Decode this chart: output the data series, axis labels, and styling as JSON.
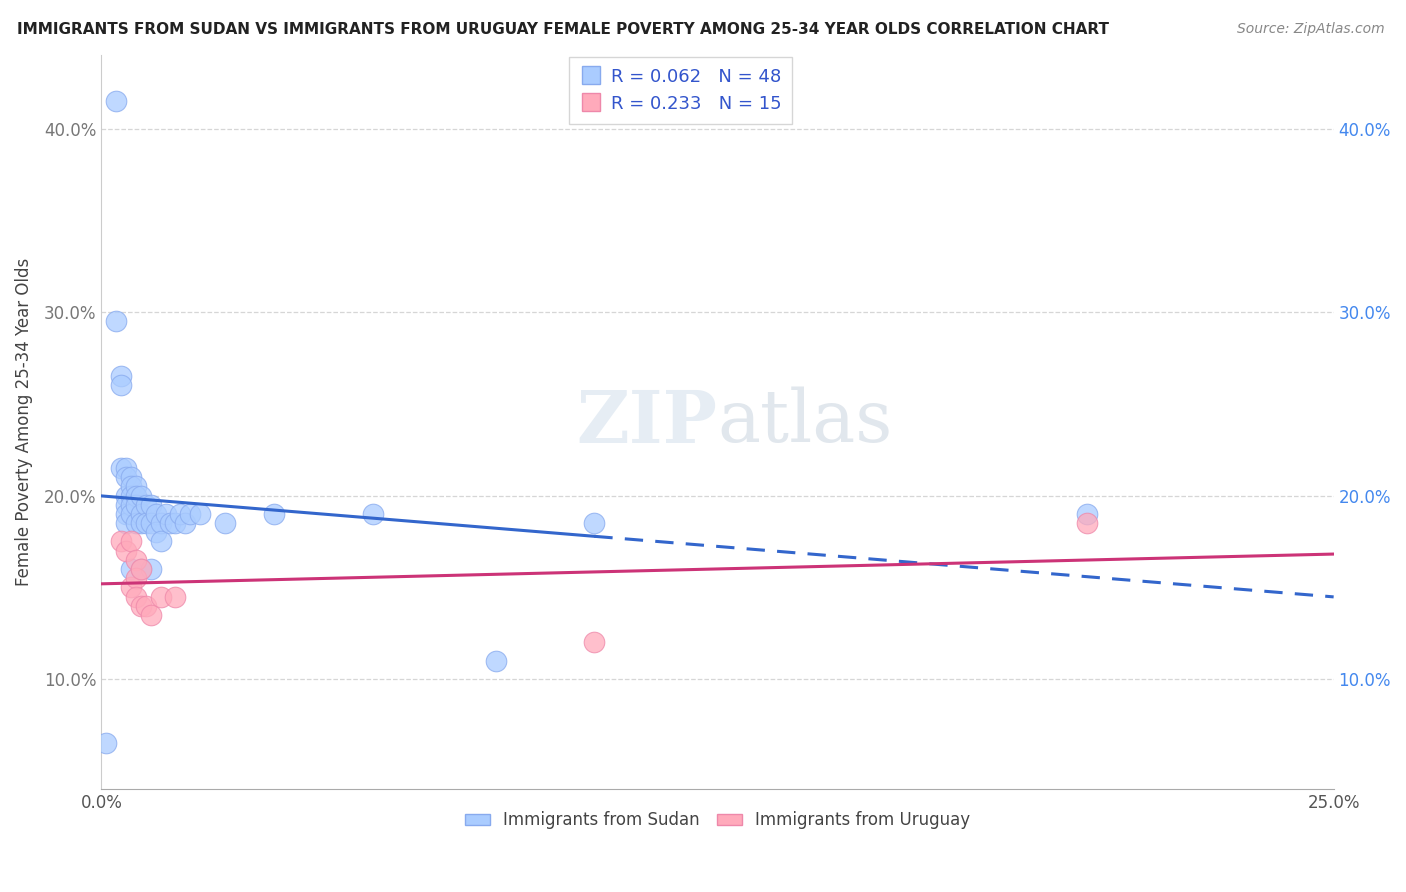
{
  "title": "IMMIGRANTS FROM SUDAN VS IMMIGRANTS FROM URUGUAY FEMALE POVERTY AMONG 25-34 YEAR OLDS CORRELATION CHART",
  "source": "Source: ZipAtlas.com",
  "ylabel": "Female Poverty Among 25-34 Year Olds",
  "xlim": [
    0.0,
    0.25
  ],
  "ylim": [
    0.04,
    0.44
  ],
  "yticks": [
    0.1,
    0.2,
    0.3,
    0.4
  ],
  "ytick_labels_left": [
    "10.0%",
    "20.0%",
    "30.0%",
    "40.0%"
  ],
  "ytick_labels_right": [
    "10.0%",
    "20.0%",
    "30.0%",
    "40.0%"
  ],
  "xtick_positions": [
    0.0,
    0.25
  ],
  "xtick_labels": [
    "0.0%",
    "25.0%"
  ],
  "sudan_color": "#aaccff",
  "sudan_edge": "#88aaee",
  "uruguay_color": "#ffaabb",
  "uruguay_edge": "#ee88aa",
  "sudan_line_color": "#3366cc",
  "uruguay_line_color": "#cc3377",
  "watermark_text": "ZIPatlas",
  "legend_entries": [
    {
      "label": "R = 0.062   N = 48",
      "color": "#aaccff"
    },
    {
      "label": "R = 0.233   N = 15",
      "color": "#ffaabb"
    }
  ],
  "bottom_legend": [
    "Immigrants from Sudan",
    "Immigrants from Uruguay"
  ],
  "sudan_x": [
    0.001,
    0.003,
    0.003,
    0.004,
    0.004,
    0.004,
    0.005,
    0.005,
    0.005,
    0.005,
    0.005,
    0.005,
    0.006,
    0.006,
    0.006,
    0.006,
    0.006,
    0.006,
    0.007,
    0.007,
    0.007,
    0.007,
    0.008,
    0.008,
    0.008,
    0.008,
    0.009,
    0.009,
    0.01,
    0.01,
    0.01,
    0.011,
    0.011,
    0.012,
    0.012,
    0.013,
    0.014,
    0.015,
    0.016,
    0.017,
    0.018,
    0.02,
    0.025,
    0.035,
    0.055,
    0.08,
    0.1,
    0.2
  ],
  "sudan_y": [
    0.065,
    0.415,
    0.295,
    0.265,
    0.26,
    0.215,
    0.215,
    0.21,
    0.2,
    0.195,
    0.19,
    0.185,
    0.21,
    0.205,
    0.2,
    0.195,
    0.19,
    0.16,
    0.205,
    0.2,
    0.195,
    0.185,
    0.2,
    0.19,
    0.185,
    0.16,
    0.195,
    0.185,
    0.195,
    0.185,
    0.16,
    0.19,
    0.18,
    0.185,
    0.175,
    0.19,
    0.185,
    0.185,
    0.19,
    0.185,
    0.19,
    0.19,
    0.185,
    0.19,
    0.19,
    0.11,
    0.185,
    0.19
  ],
  "uruguay_x": [
    0.004,
    0.005,
    0.006,
    0.006,
    0.007,
    0.007,
    0.007,
    0.008,
    0.008,
    0.009,
    0.01,
    0.012,
    0.015,
    0.1,
    0.2
  ],
  "uruguay_y": [
    0.175,
    0.17,
    0.175,
    0.15,
    0.165,
    0.155,
    0.145,
    0.16,
    0.14,
    0.14,
    0.135,
    0.145,
    0.145,
    0.12,
    0.185
  ]
}
